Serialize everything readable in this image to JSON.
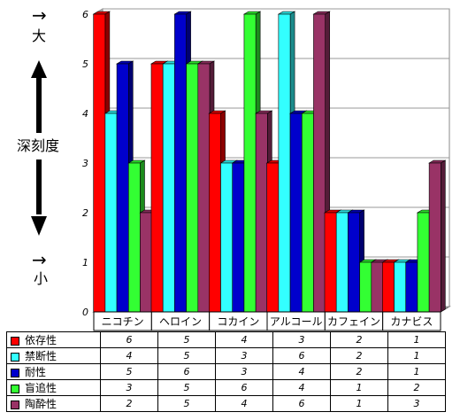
{
  "annotations": {
    "top_arrow": "→",
    "top_label": "大",
    "middle_label": "深刻度",
    "bottom_arrow": "→",
    "bottom_label": "小"
  },
  "chart_data": {
    "type": "bar",
    "categories": [
      "ニコチン",
      "ヘロイン",
      "コカイン",
      "アルコール",
      "カフェイン",
      "カナビス"
    ],
    "series": [
      {
        "name": "依存性",
        "color": "#ff0000",
        "values": [
          6,
          5,
          4,
          3,
          2,
          1
        ]
      },
      {
        "name": "禁断性",
        "color": "#33ffff",
        "values": [
          4,
          5,
          3,
          6,
          2,
          1
        ]
      },
      {
        "name": "耐性",
        "color": "#0000cc",
        "values": [
          5,
          6,
          3,
          4,
          2,
          1
        ]
      },
      {
        "name": "盲追性",
        "color": "#33ff33",
        "values": [
          3,
          5,
          6,
          4,
          1,
          2
        ]
      },
      {
        "name": "陶酔性",
        "color": "#993366",
        "values": [
          2,
          5,
          4,
          6,
          1,
          3
        ]
      }
    ],
    "ylim": [
      0,
      6
    ],
    "yticks": [
      "0",
      "1",
      "2",
      "3",
      "4",
      "5",
      "6"
    ],
    "grid": true,
    "legend": "data table below chart"
  }
}
